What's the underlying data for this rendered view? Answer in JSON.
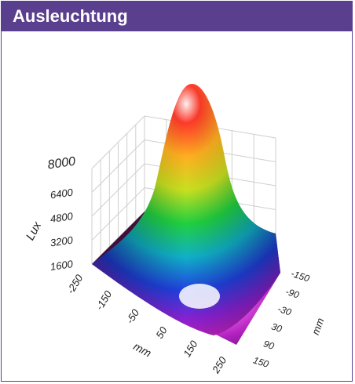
{
  "header": {
    "title": "Ausleuchtung"
  },
  "colors": {
    "header_bg": "#5a3f8e",
    "header_text": "#ffffff",
    "grid": "#cfcfcf"
  },
  "chart_data": {
    "type": "surface",
    "zlabel": "Lux",
    "xlabel": "mm",
    "ylabel": "mm",
    "z_ticks": [
      "1600",
      "3200",
      "4800",
      "6400",
      "8000"
    ],
    "x_ticks": [
      "-250",
      "-150",
      "-50",
      "50",
      "150",
      "250"
    ],
    "y_ticks": [
      "-150",
      "-90",
      "-30",
      "30",
      "90",
      "150"
    ],
    "zlim": [
      1600,
      8000
    ],
    "xlim": [
      -250,
      250
    ],
    "ylim": [
      -150,
      150
    ],
    "peak": {
      "x": 0,
      "y": 0,
      "z": 8000
    },
    "edge_value": 1600,
    "grid": true
  }
}
